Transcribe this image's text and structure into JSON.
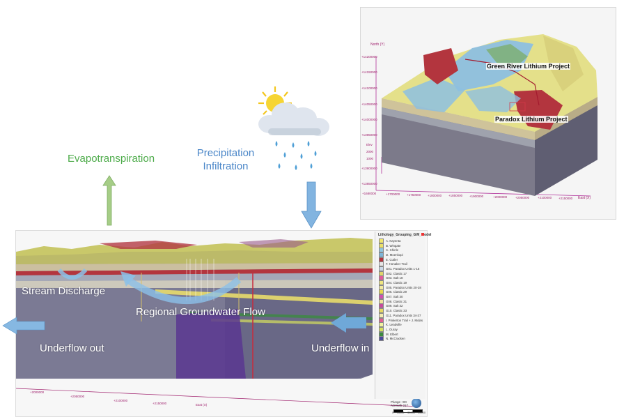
{
  "labels": {
    "evapotranspiration": "Evapotranspiration",
    "precipitation": "Precipitation",
    "infiltration": "Infiltration",
    "stream_discharge": "Stream Discharge",
    "regional_flow": "Regional Groundwater Flow",
    "underflow_out": "Underflow out",
    "underflow_in": "Underflow in"
  },
  "inset_map": {
    "annotations": [
      "Green River Lithium Project",
      "Paradox Lithium Project"
    ],
    "axis_north_label": "North (Y)",
    "axis_east_label": "East (X)",
    "north_ticks": [
      "+14200000",
      "+14150000",
      "+14100000",
      "+14050000",
      "+14000000",
      "+13950000",
      "+13900000",
      "+13850000"
    ],
    "east_ticks": [
      "+1680000",
      "+1700000",
      "+1750000",
      "+1800000",
      "+1850000",
      "+1900000",
      "+2000000",
      "+2050000",
      "+2100000",
      "+2150000"
    ],
    "elev_label": "Elev",
    "elev_ticks": [
      "2000",
      "1000"
    ]
  },
  "model_view": {
    "axis_label": "East (X)",
    "ticks": [
      "+2000000",
      "+2050000",
      "+2100000",
      "+2150000"
    ],
    "compass": "Plunge +00\nAzimuth 217",
    "scale_bar": [
      "0",
      "15000",
      "30000",
      "45000"
    ]
  },
  "legend": {
    "title": "Lithology_Grouping_GW_Model",
    "items": [
      {
        "label": "A. Kayenta",
        "color": "#f2e86d"
      },
      {
        "label": "B. Wingate",
        "color": "#ebe06a"
      },
      {
        "label": "C. Chinle",
        "color": "#93c6e0"
      },
      {
        "label": "D. Moenkopi",
        "color": "#7db5d8"
      },
      {
        "label": "E. Cutler",
        "color": "#b3333d"
      },
      {
        "label": "F. Honaker Trail",
        "color": "#e6e6e6"
      },
      {
        "label": "G01. Paradox Units 1-16",
        "color": "#cbd9e8"
      },
      {
        "label": "G02. Clastic 17",
        "color": "#e0d56c"
      },
      {
        "label": "G03. Salt 18",
        "color": "#e05c9a"
      },
      {
        "label": "G04. Clastic 19",
        "color": "#f0e680"
      },
      {
        "label": "G05. Paradox Units 20-28",
        "color": "#f3eaa0"
      },
      {
        "label": "G06. Clastic 29",
        "color": "#e8d84e"
      },
      {
        "label": "G07. Salt 30",
        "color": "#d04fb0"
      },
      {
        "label": "G08. Clastic 31",
        "color": "#efe49c"
      },
      {
        "label": "G09. Salt 32",
        "color": "#c74a9c"
      },
      {
        "label": "G10. Clastic 33",
        "color": "#e7d962"
      },
      {
        "label": "G11. Paradox Units 34-37",
        "color": "#f4ecb0"
      },
      {
        "label": "I. Pinkerton Trail + J. Molas",
        "color": "#e06090"
      },
      {
        "label": "K. Leadville",
        "color": "#f2f2a0"
      },
      {
        "label": "L. Ouray",
        "color": "#d6e05c"
      },
      {
        "label": "M. Elbert",
        "color": "#3b8a40"
      },
      {
        "label": "N. McCracken",
        "color": "#4b4a9a"
      }
    ]
  },
  "colors": {
    "green_arrow": "#9ac77a",
    "blue_arrow": "#7fb2de",
    "green_text": "#4dab4a",
    "blue_text": "#4a86c8"
  }
}
